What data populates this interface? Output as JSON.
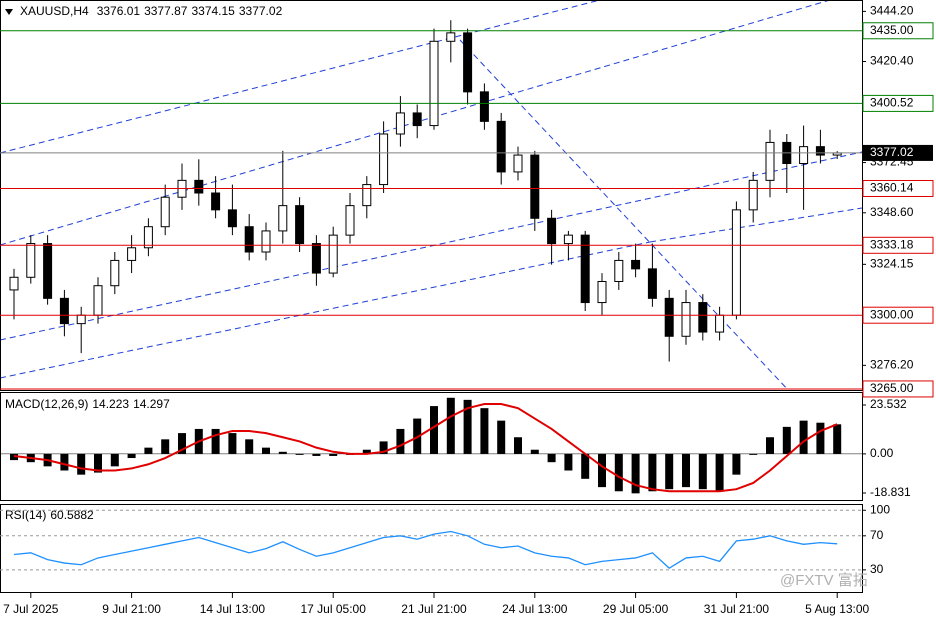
{
  "header": {
    "symbol": "XAUUSD,H4"
  },
  "watermark": "@FXTV 富拓",
  "chart_data": [
    {
      "type": "candlestick",
      "categories": [
        null,
        "7 Jul 2025",
        null,
        null,
        null,
        null,
        null,
        "9 Jul 21:00",
        null,
        null,
        null,
        null,
        null,
        "14 Jul 13:00",
        null,
        null,
        null,
        null,
        null,
        "17 Jul 05:00",
        null,
        null,
        null,
        null,
        null,
        "21 Jul 21:00",
        null,
        null,
        null,
        null,
        null,
        "24 Jul 13:00",
        null,
        null,
        null,
        null,
        null,
        "29 Jul 05:00",
        null,
        null,
        null,
        null,
        null,
        "31 Jul 21:00",
        null,
        null,
        null,
        null,
        null,
        "5 Aug 13:00"
      ],
      "open": [
        3312,
        3318,
        3334,
        3308,
        3296,
        3300,
        3314,
        3326,
        3332,
        3342,
        3356,
        3364,
        3358,
        3350,
        3342,
        3330,
        3340,
        3352,
        3334,
        3320,
        3338,
        3352,
        3362,
        3386,
        3396,
        3390,
        3430,
        3434,
        3406,
        3392,
        3368,
        3376,
        3346,
        3334,
        3338,
        3306,
        3316,
        3326,
        3322,
        3308,
        3290,
        3306,
        3292,
        3300,
        3350,
        3364,
        3382,
        3372,
        3380,
        3376.01
      ],
      "high": [
        3322,
        3338,
        3338,
        3312,
        3304,
        3318,
        3330,
        3338,
        3346,
        3362,
        3372,
        3374,
        3366,
        3362,
        3348,
        3344,
        3378,
        3356,
        3338,
        3342,
        3358,
        3366,
        3392,
        3404,
        3400,
        3436,
        3440,
        3436,
        3410,
        3396,
        3380,
        3378,
        3350,
        3340,
        3340,
        3320,
        3330,
        3334,
        3334,
        3312,
        3312,
        3310,
        3304,
        3354,
        3368,
        3388,
        3386,
        3390,
        3388,
        3377.87
      ],
      "low": [
        3298,
        3315,
        3305,
        3290,
        3282,
        3296,
        3310,
        3320,
        3328,
        3338,
        3350,
        3352,
        3346,
        3338,
        3326,
        3326,
        3334,
        3330,
        3314,
        3318,
        3334,
        3346,
        3358,
        3380,
        3384,
        3388,
        3420,
        3400,
        3388,
        3362,
        3364,
        3340,
        3324,
        3326,
        3302,
        3300,
        3312,
        3318,
        3304,
        3278,
        3286,
        3288,
        3288,
        3298,
        3344,
        3356,
        3358,
        3350,
        3372,
        3374.15
      ],
      "close": [
        3318,
        3334,
        3308,
        3296,
        3300,
        3314,
        3326,
        3332,
        3342,
        3356,
        3364,
        3358,
        3350,
        3342,
        3330,
        3340,
        3352,
        3334,
        3320,
        3338,
        3352,
        3362,
        3386,
        3396,
        3390,
        3430,
        3434,
        3406,
        3392,
        3368,
        3376,
        3346,
        3334,
        3338,
        3306,
        3316,
        3326,
        3322,
        3308,
        3290,
        3306,
        3292,
        3300,
        3350,
        3364,
        3382,
        3372,
        3380,
        3376,
        3377.02
      ],
      "up_color": "#ffffff",
      "down_color": "#000000",
      "ylim": [
        3264.5,
        3449.6
      ],
      "yticks": [
        {
          "value": 3444.2,
          "label": "3444.20"
        },
        {
          "value": 3420.4,
          "label": "3420.40"
        },
        {
          "value": 3372.45,
          "label": "3372.45"
        },
        {
          "value": 3348.6,
          "label": "3348.60"
        },
        {
          "value": 3324.15,
          "label": "3324.15"
        },
        {
          "value": 3276.2,
          "label": "3276.20"
        }
      ],
      "levels": [
        {
          "value": 3435,
          "label": "3435.00",
          "color": "#008000"
        },
        {
          "value": 3400.52,
          "label": "3400.52",
          "color": "#008000"
        },
        {
          "value": 3360.14,
          "label": "3360.14",
          "color": "#e00000"
        },
        {
          "value": 3333.18,
          "label": "3333.18",
          "color": "#e00000"
        },
        {
          "value": 3300,
          "label": "3300.00",
          "color": "#e00000"
        },
        {
          "value": 3265,
          "label": "3265.00",
          "color": "#e00000"
        }
      ],
      "price_line_color": "#808080"
    },
    {
      "type": "macd",
      "title": "MACD(12,26,9)",
      "histogram": [
        -3,
        -4,
        -6,
        -8,
        -10,
        -9,
        -6,
        -2,
        3,
        7,
        10,
        12,
        12,
        10,
        7,
        3,
        1,
        0,
        -1,
        -1,
        0,
        2,
        6,
        12,
        17,
        23,
        27,
        26,
        22,
        16,
        8,
        2,
        -4,
        -8,
        -12,
        -16,
        -18,
        -19,
        -18,
        -17,
        -16,
        -17,
        -18,
        -10,
        0,
        8,
        13,
        16,
        15,
        14.223
      ],
      "signal": [
        -1,
        -2,
        -3,
        -5,
        -7,
        -8,
        -8,
        -7,
        -5,
        -2,
        2,
        6,
        9,
        11,
        11,
        10,
        8,
        6,
        3,
        1,
        0,
        0,
        1,
        4,
        8,
        13,
        18,
        22,
        24,
        24,
        22,
        17,
        12,
        6,
        0,
        -6,
        -11,
        -15,
        -17,
        -18,
        -18,
        -18,
        -18,
        -17,
        -14,
        -8,
        -1,
        6,
        11,
        14.297
      ],
      "histogram_color": "#000000",
      "signal_color": "#e00000",
      "ylim": [
        -22.2,
        29.3
      ],
      "yticks": [
        23.532,
        {
          "value": 0,
          "label": "0.00"
        },
        -18.831
      ]
    },
    {
      "type": "line",
      "title": "RSI(14)",
      "values": [
        48,
        50,
        42,
        38,
        36,
        44,
        48,
        52,
        56,
        60,
        64,
        68,
        62,
        56,
        50,
        55,
        63,
        54,
        46,
        50,
        56,
        62,
        68,
        70,
        66,
        72,
        75,
        70,
        60,
        56,
        58,
        50,
        46,
        44,
        36,
        40,
        42,
        44,
        50,
        32,
        44,
        46,
        40,
        64,
        66,
        70,
        64,
        60,
        62,
        60.5882
      ],
      "color": "#1e90ff",
      "ylim": [
        4,
        105
      ],
      "yticks": [
        100,
        70,
        30
      ],
      "grid": true
    }
  ]
}
